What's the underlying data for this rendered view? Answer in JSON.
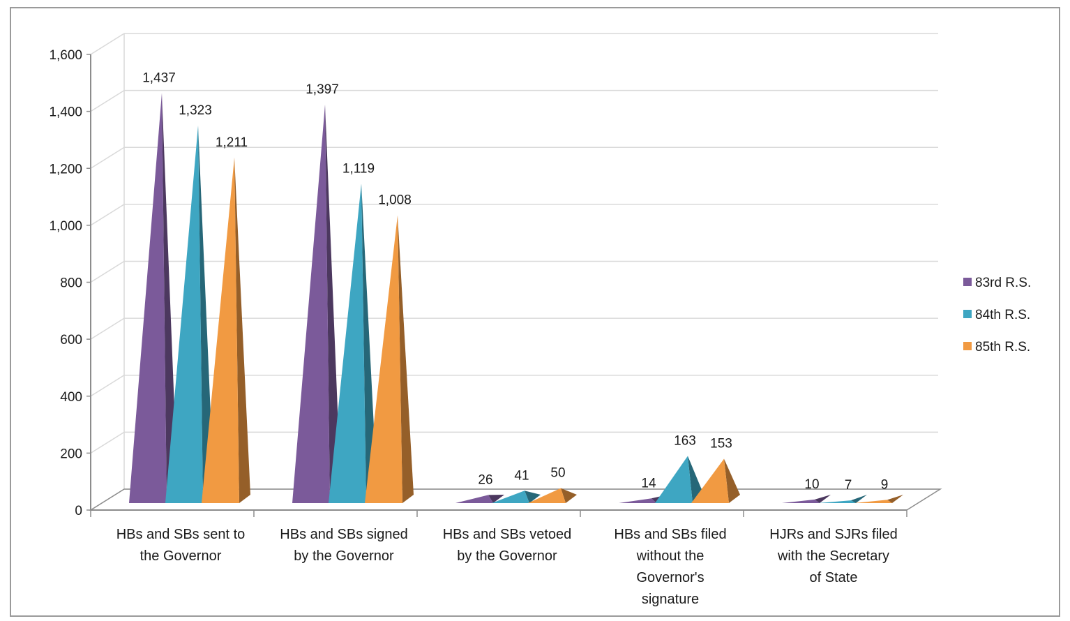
{
  "chart_data": {
    "type": "bar",
    "style": "3d-pyramid",
    "categories": [
      [
        "HBs and SBs sent to",
        "the Governor"
      ],
      [
        "HBs and SBs signed",
        "by the Governor"
      ],
      [
        "HBs and SBs vetoed",
        "by the Governor"
      ],
      [
        "HBs and SBs filed",
        "without the",
        "Governor's",
        "signature"
      ],
      [
        "HJRs and SJRs filed",
        "with the Secretary",
        "of State"
      ]
    ],
    "series": [
      {
        "name": "83rd R.S.",
        "color": "#7b5a9a",
        "values": [
          1437,
          1397,
          26,
          14,
          10
        ],
        "labels": [
          "1,437",
          "1,397",
          "26",
          "14",
          "10"
        ]
      },
      {
        "name": "84th R.S.",
        "color": "#3ea6c2",
        "values": [
          1323,
          1119,
          41,
          163,
          7
        ],
        "labels": [
          "1,323",
          "1,119",
          "41",
          "163",
          "7"
        ]
      },
      {
        "name": "85th R.S.",
        "color": "#f19a42",
        "values": [
          1211,
          1008,
          50,
          153,
          9
        ],
        "labels": [
          "1,211",
          "1,008",
          "50",
          "153",
          "9"
        ]
      }
    ],
    "ylim": [
      0,
      1600
    ],
    "yticks": [
      0,
      200,
      400,
      600,
      800,
      1000,
      1200,
      1400,
      1600
    ],
    "ytick_labels": [
      "0",
      "200",
      "400",
      "600",
      "800",
      "1,000",
      "1,200",
      "1,400",
      "1,600"
    ],
    "grid": true,
    "legend": "right",
    "title": "",
    "xlabel": "",
    "ylabel": ""
  }
}
